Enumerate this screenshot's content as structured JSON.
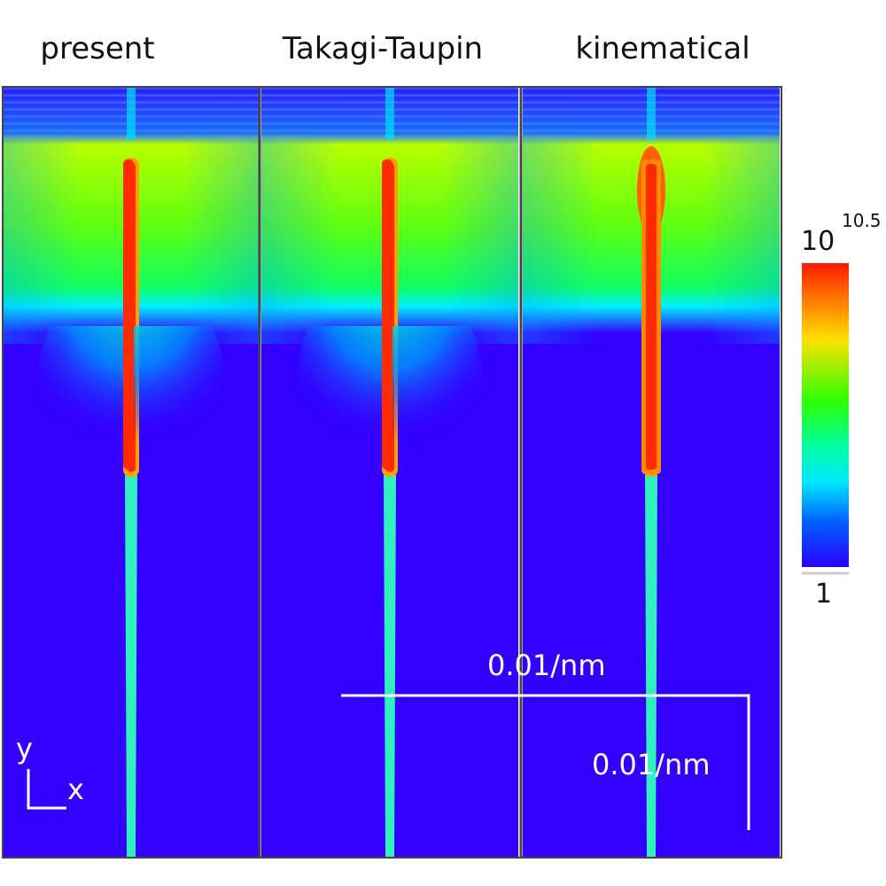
{
  "panels": [
    {
      "title": "present"
    },
    {
      "title": "Takagi-Taupin"
    },
    {
      "title": "kinematical"
    }
  ],
  "colorbar": {
    "max_label": {
      "base": "10",
      "exponent": "10.5"
    },
    "min_label": "1"
  },
  "scale_bars": {
    "horizontal": "0.01/nm",
    "vertical": "0.01/nm"
  },
  "axes": {
    "y": "y",
    "x": "x"
  }
}
